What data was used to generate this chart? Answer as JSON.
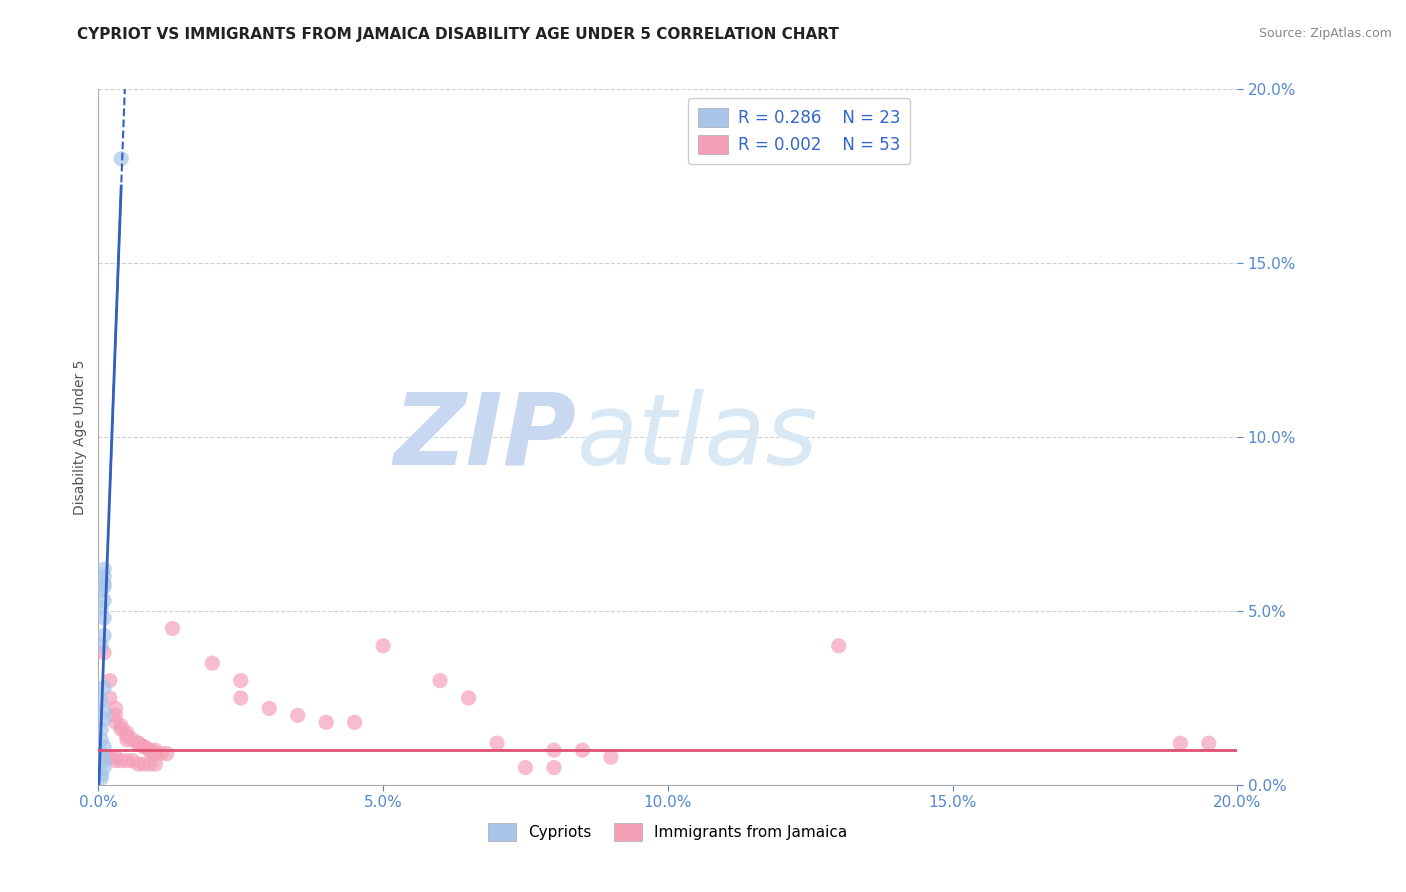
{
  "title": "CYPRIOT VS IMMIGRANTS FROM JAMAICA DISABILITY AGE UNDER 5 CORRELATION CHART",
  "source": "Source: ZipAtlas.com",
  "ylabel": "Disability Age Under 5",
  "xlim": [
    0.0,
    0.2
  ],
  "ylim": [
    0.0,
    0.2
  ],
  "xticks": [
    0.0,
    0.05,
    0.1,
    0.15,
    0.2
  ],
  "yticks": [
    0.0,
    0.05,
    0.1,
    0.15,
    0.2
  ],
  "blue_R": 0.286,
  "blue_N": 23,
  "pink_R": 0.002,
  "pink_N": 53,
  "blue_color": "#a8c4e8",
  "pink_color": "#f4a0b8",
  "blue_line_color": "#3060c0",
  "pink_line_color": "#e05070",
  "blue_scatter": [
    [
      0.004,
      0.18
    ],
    [
      0.001,
      0.062
    ],
    [
      0.001,
      0.06
    ],
    [
      0.001,
      0.058
    ],
    [
      0.001,
      0.057
    ],
    [
      0.0005,
      0.056
    ],
    [
      0.001,
      0.053
    ],
    [
      0.0005,
      0.051
    ],
    [
      0.001,
      0.048
    ],
    [
      0.001,
      0.043
    ],
    [
      0.0005,
      0.04
    ],
    [
      0.001,
      0.028
    ],
    [
      0.0005,
      0.024
    ],
    [
      0.001,
      0.021
    ],
    [
      0.001,
      0.019
    ],
    [
      0.0005,
      0.016
    ],
    [
      0.0005,
      0.013
    ],
    [
      0.001,
      0.011
    ],
    [
      0.0005,
      0.009
    ],
    [
      0.001,
      0.007
    ],
    [
      0.001,
      0.005
    ],
    [
      0.0005,
      0.003
    ],
    [
      0.0005,
      0.002
    ]
  ],
  "pink_scatter": [
    [
      0.001,
      0.038
    ],
    [
      0.002,
      0.03
    ],
    [
      0.002,
      0.025
    ],
    [
      0.003,
      0.022
    ],
    [
      0.003,
      0.02
    ],
    [
      0.003,
      0.018
    ],
    [
      0.004,
      0.017
    ],
    [
      0.004,
      0.016
    ],
    [
      0.005,
      0.015
    ],
    [
      0.005,
      0.014
    ],
    [
      0.005,
      0.013
    ],
    [
      0.006,
      0.013
    ],
    [
      0.007,
      0.012
    ],
    [
      0.007,
      0.012
    ],
    [
      0.008,
      0.011
    ],
    [
      0.008,
      0.011
    ],
    [
      0.009,
      0.01
    ],
    [
      0.009,
      0.01
    ],
    [
      0.01,
      0.01
    ],
    [
      0.01,
      0.009
    ],
    [
      0.011,
      0.009
    ],
    [
      0.012,
      0.009
    ],
    [
      0.013,
      0.045
    ],
    [
      0.02,
      0.035
    ],
    [
      0.025,
      0.03
    ],
    [
      0.025,
      0.025
    ],
    [
      0.03,
      0.022
    ],
    [
      0.035,
      0.02
    ],
    [
      0.04,
      0.018
    ],
    [
      0.045,
      0.018
    ],
    [
      0.001,
      0.008
    ],
    [
      0.002,
      0.008
    ],
    [
      0.003,
      0.008
    ],
    [
      0.003,
      0.007
    ],
    [
      0.004,
      0.007
    ],
    [
      0.005,
      0.007
    ],
    [
      0.006,
      0.007
    ],
    [
      0.007,
      0.006
    ],
    [
      0.008,
      0.006
    ],
    [
      0.009,
      0.006
    ],
    [
      0.01,
      0.006
    ],
    [
      0.05,
      0.04
    ],
    [
      0.06,
      0.03
    ],
    [
      0.065,
      0.025
    ],
    [
      0.07,
      0.012
    ],
    [
      0.075,
      0.005
    ],
    [
      0.08,
      0.005
    ],
    [
      0.08,
      0.01
    ],
    [
      0.085,
      0.01
    ],
    [
      0.09,
      0.008
    ],
    [
      0.13,
      0.04
    ],
    [
      0.19,
      0.012
    ],
    [
      0.195,
      0.012
    ]
  ],
  "watermark_zip": "ZIP",
  "watermark_atlas": "atlas",
  "watermark_color": "#c8d8f0",
  "background_color": "#ffffff",
  "grid_color": "#cccccc",
  "tick_label_color": "#5588cc",
  "ylabel_color": "#555555"
}
